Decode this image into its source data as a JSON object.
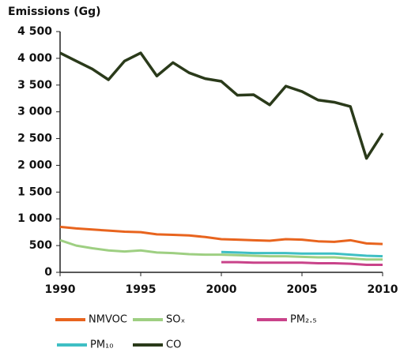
{
  "chart_data": {
    "type": "line",
    "y_label": "Emissions (Gg)",
    "x": [
      1990,
      1991,
      1992,
      1993,
      1994,
      1995,
      1996,
      1997,
      1998,
      1999,
      2000,
      2001,
      2002,
      2003,
      2004,
      2005,
      2006,
      2007,
      2008,
      2009,
      2010
    ],
    "xlim": [
      1990,
      2010
    ],
    "xticks": [
      1990,
      1995,
      2000,
      2005,
      2010
    ],
    "ylim": [
      0,
      4500
    ],
    "yticks": [
      0,
      {
        "value": 500,
        "label": "500"
      },
      {
        "value": 1000,
        "label": "1 000"
      },
      {
        "value": 1500,
        "label": "1 500"
      },
      {
        "value": 2000,
        "label": "2 000"
      },
      {
        "value": 2500,
        "label": "2 500"
      },
      {
        "value": 3000,
        "label": "3 000"
      },
      {
        "value": 3500,
        "label": "3 500"
      },
      {
        "value": 4000,
        "label": "4 000"
      },
      {
        "value": 4500,
        "label": "4 500"
      }
    ],
    "series": [
      {
        "name": "NMVOC",
        "color": "#e8641e",
        "values": [
          850,
          820,
          800,
          780,
          760,
          750,
          710,
          700,
          690,
          660,
          620,
          610,
          600,
          590,
          620,
          610,
          580,
          570,
          600,
          540,
          530
        ]
      },
      {
        "name": "SOₓ",
        "color": "#9ecf82",
        "values": [
          600,
          500,
          450,
          410,
          390,
          410,
          370,
          360,
          340,
          330,
          330,
          320,
          310,
          300,
          300,
          290,
          280,
          280,
          260,
          240,
          240
        ]
      },
      {
        "name": "PM₂.₅",
        "color": "#c9438a",
        "values": [
          null,
          null,
          null,
          null,
          null,
          null,
          null,
          null,
          null,
          null,
          190,
          190,
          180,
          180,
          180,
          180,
          170,
          170,
          160,
          140,
          140
        ]
      },
      {
        "name": "PM₁₀",
        "color": "#3fbfc4",
        "values": [
          null,
          null,
          null,
          null,
          null,
          null,
          null,
          null,
          null,
          null,
          380,
          370,
          360,
          360,
          360,
          350,
          350,
          350,
          330,
          310,
          300
        ]
      },
      {
        "name": "CO",
        "color": "#2a3a1a",
        "values": [
          4100,
          3950,
          3800,
          3600,
          3950,
          4100,
          3670,
          3920,
          3730,
          3620,
          3570,
          3310,
          3320,
          3130,
          3480,
          3380,
          3220,
          3180,
          3100,
          2130,
          2600
        ]
      }
    ]
  }
}
